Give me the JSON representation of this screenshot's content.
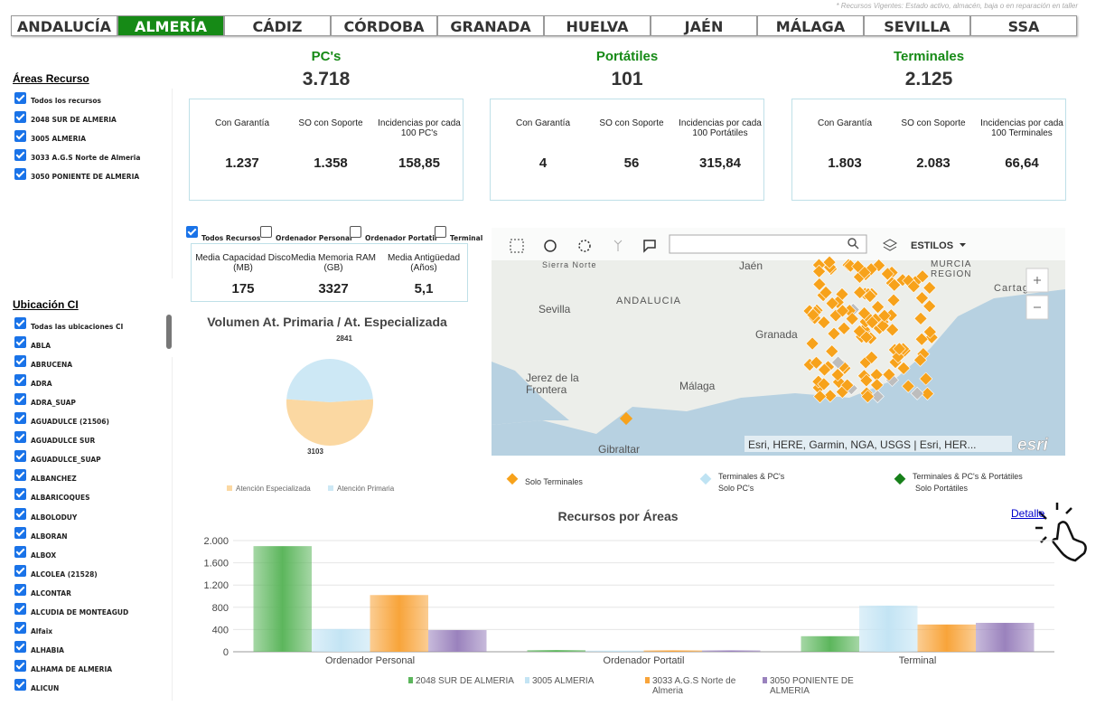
{
  "note": "* Recursos Vigentes: Estado activo, almacén, baja o en reparación en taller",
  "nav": [
    "ANDALUCÍA",
    "ALMERÍA",
    "CÁDIZ",
    "CÓRDOBA",
    "GRANADA",
    "HUELVA",
    "JAÉN",
    "MÁLAGA",
    "SEVILLA",
    "SSA"
  ],
  "active_tab": "ALMERÍA",
  "areas": {
    "title": "Áreas Recurso",
    "items": [
      "Todos los recursos",
      "2048 SUR DE ALMERIA",
      "3005 ALMERIA",
      "3033 A.G.S Norte de Almeria",
      "3050 PONIENTE DE ALMERIA"
    ]
  },
  "ubicacion": {
    "title": "Ubicación CI",
    "items": [
      "Todas las ubicaciones CI",
      "ABLA",
      "ABRUCENA",
      "ADRA",
      "ADRA_SUAP",
      "AGUADULCE (21506)",
      "AGUADULCE SUR",
      "AGUADULCE_SUAP",
      "ALBANCHEZ",
      "ALBARICOQUES",
      "ALBOLODUY",
      "ALBORAN",
      "ALBOX",
      "ALCOLEA (21528)",
      "ALCONTAR",
      "ALCUDIA DE MONTEAGUD",
      "Alfaix",
      "ALHABIA",
      "ALHAMA DE ALMERIA",
      "ALICUN"
    ]
  },
  "kpis": [
    {
      "title": "PC's",
      "total": "3.718",
      "metrics": [
        {
          "label": "Con Garantía",
          "value": "1.237"
        },
        {
          "label": "SO con Soporte",
          "value": "1.358"
        },
        {
          "label": "Incidencias por cada 100 PC's",
          "value": "158,85"
        }
      ]
    },
    {
      "title": "Portátiles",
      "total": "101",
      "metrics": [
        {
          "label": "Con Garantía",
          "value": "4"
        },
        {
          "label": "SO con Soporte",
          "value": "56"
        },
        {
          "label": "Incidencias por cada 100 Portátiles",
          "value": "315,84"
        }
      ]
    },
    {
      "title": "Terminales",
      "total": "2.125",
      "metrics": [
        {
          "label": "Con Garantía",
          "value": "1.803"
        },
        {
          "label": "SO con Soporte",
          "value": "2.083"
        },
        {
          "label": "Incidencias por cada 100 Terminales",
          "value": "66,64"
        }
      ]
    }
  ],
  "filters": {
    "options": [
      {
        "label": "Todos Recursos",
        "checked": true
      },
      {
        "label": "Ordenador Personal",
        "checked": false
      },
      {
        "label": "Ordenador Portatil",
        "checked": false
      },
      {
        "label": "Terminal",
        "checked": false
      }
    ],
    "metrics": [
      {
        "label": "Media Capacidad Disco (MB)",
        "value": "175"
      },
      {
        "label": "Media Memoria RAM (GB)",
        "value": "3327"
      },
      {
        "label": "Media Antigüedad (Años)",
        "value": "5,1"
      }
    ]
  },
  "map": {
    "styles_button": "ESTILOS",
    "attribution": "Esri, HERE, Garmin, NGA, USGS | Esri, HER...",
    "logo": "esri",
    "places": [
      "Sierra Norte",
      "Jaén",
      "MURCIA",
      "REGION",
      "ANDALUCIA",
      "Cartagena",
      "Sevilla",
      "Granada",
      "Jerez de la",
      "Frontera",
      "Málaga",
      "Gibraltar"
    ]
  },
  "map_legend": [
    {
      "lines": [
        "Solo Terminales"
      ],
      "color": "#f7a21b"
    },
    {
      "lines": [
        "Terminales & PC's",
        "Solo PC's"
      ],
      "color": "#bfe3f3"
    },
    {
      "lines": [
        "Terminales & PC's & Portátiles",
        "Solo Portátiles"
      ],
      "color": "#17801a"
    }
  ],
  "detail_link": "Detalle",
  "chart_data": [
    {
      "type": "pie",
      "title": "Volumen At. Primaria / At. Especializada",
      "categories": [
        "Atención Especializada",
        "Atención Primaria"
      ],
      "values": [
        3103,
        2841
      ],
      "colors": [
        "#fbd8a2",
        "#cde8f5"
      ]
    },
    {
      "type": "bar",
      "title": "Recursos por Áreas",
      "categories": [
        "Ordenador Personal",
        "Ordenador Portatil",
        "Terminal"
      ],
      "series": [
        {
          "name": "2048 SUR DE ALMERIA",
          "color": "#5cb65c",
          "values": [
            1900,
            30,
            280
          ]
        },
        {
          "name": "3005 ALMERIA",
          "color": "#c3e4f4",
          "values": [
            410,
            20,
            830
          ]
        },
        {
          "name": "3033 A.G.S Norte de Almeria",
          "color": "#f8a43a",
          "values": [
            1020,
            25,
            490
          ]
        },
        {
          "name": "3050 PONIENTE DE ALMERIA",
          "color": "#9a82bd",
          "values": [
            390,
            25,
            520
          ]
        }
      ],
      "ylim": [
        0,
        2000
      ],
      "yticks": [
        0,
        400,
        800,
        {
          "value": 1200,
          "label": "1.200"
        },
        {
          "value": 1600,
          "label": "1.600"
        },
        {
          "value": 2000,
          "label": "2.000"
        }
      ],
      "grid": true
    }
  ]
}
